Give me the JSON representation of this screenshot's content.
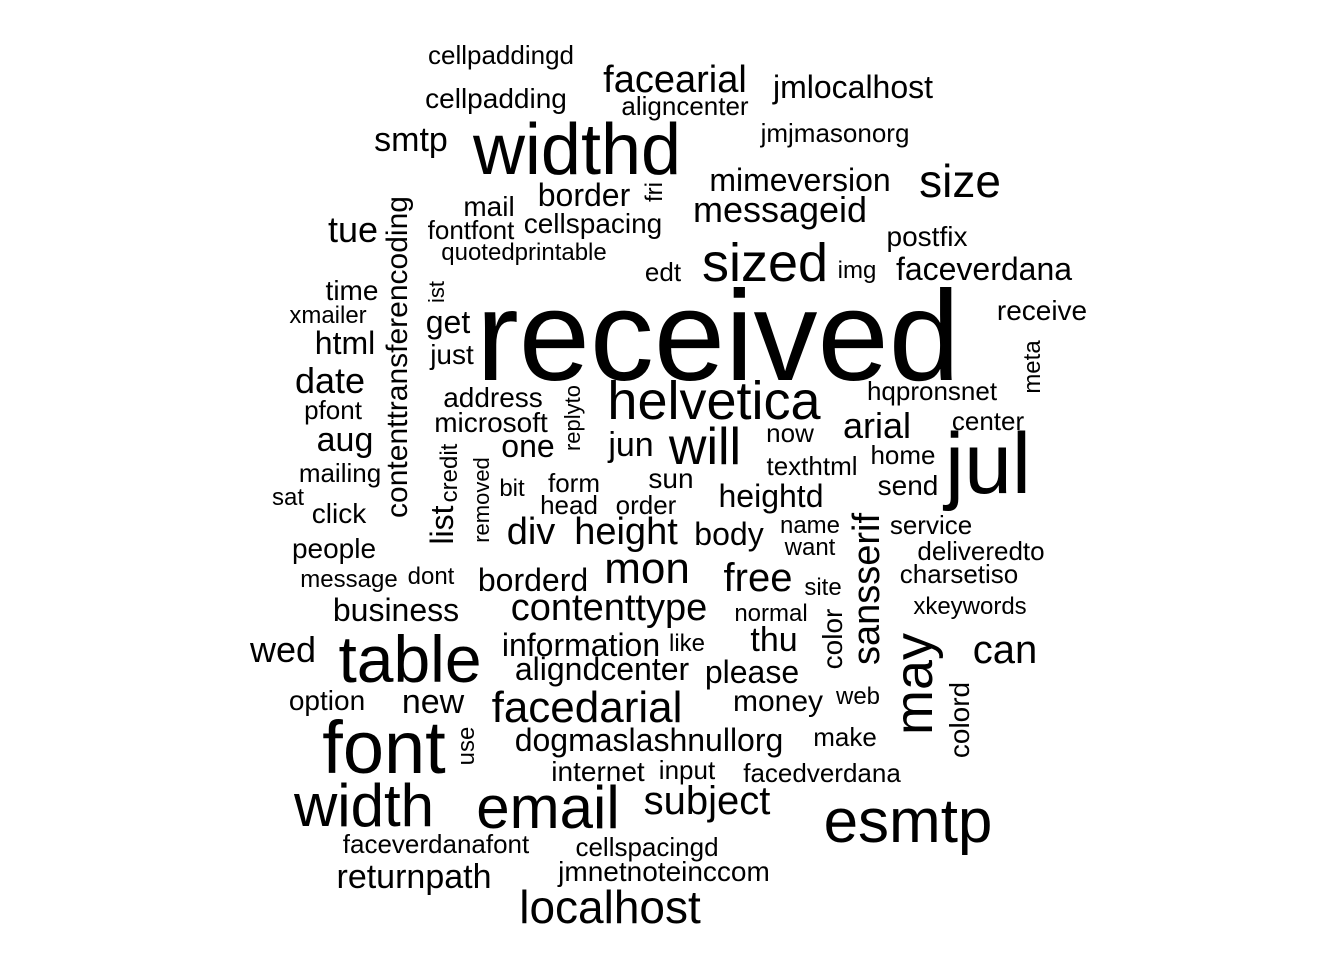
{
  "word_cloud": {
    "text_color": "#000000",
    "background_color": "#ffffff",
    "words": [
      {
        "text": "received",
        "rotated": false
      },
      {
        "text": "jul",
        "rotated": false
      },
      {
        "text": "widthd",
        "rotated": false
      },
      {
        "text": "font",
        "rotated": false
      },
      {
        "text": "table",
        "rotated": false
      },
      {
        "text": "esmtp",
        "rotated": false
      },
      {
        "text": "email",
        "rotated": false
      },
      {
        "text": "width",
        "rotated": false
      },
      {
        "text": "helvetica",
        "rotated": false
      },
      {
        "text": "sized",
        "rotated": false
      },
      {
        "text": "may",
        "rotated": true
      },
      {
        "text": "will",
        "rotated": false
      },
      {
        "text": "size",
        "rotated": false
      },
      {
        "text": "sansserif",
        "rotated": true
      },
      {
        "text": "localhost",
        "rotated": false
      },
      {
        "text": "mon",
        "rotated": false
      },
      {
        "text": "facedarial",
        "rotated": false
      },
      {
        "text": "subject",
        "rotated": false
      },
      {
        "text": "facearial",
        "rotated": false
      },
      {
        "text": "contenttransferencoding",
        "rotated": true
      },
      {
        "text": "height",
        "rotated": false
      },
      {
        "text": "free",
        "rotated": false
      },
      {
        "text": "contenttype",
        "rotated": false
      },
      {
        "text": "can",
        "rotated": false
      },
      {
        "text": "div",
        "rotated": false
      },
      {
        "text": "messageid",
        "rotated": false
      },
      {
        "text": "wed",
        "rotated": false
      },
      {
        "text": "tue",
        "rotated": false
      },
      {
        "text": "date",
        "rotated": false
      },
      {
        "text": "jun",
        "rotated": false
      },
      {
        "text": "returnpath",
        "rotated": false
      },
      {
        "text": "jmlocalhost",
        "rotated": false
      },
      {
        "text": "mimeversion",
        "rotated": false
      },
      {
        "text": "faceverdana",
        "rotated": false
      },
      {
        "text": "dogmaslashnullorg",
        "rotated": false
      },
      {
        "text": "heightd",
        "rotated": false
      },
      {
        "text": "body",
        "rotated": false
      },
      {
        "text": "arial",
        "rotated": false
      },
      {
        "text": "html",
        "rotated": false
      },
      {
        "text": "smtp",
        "rotated": false
      },
      {
        "text": "border",
        "rotated": false
      },
      {
        "text": "thu",
        "rotated": false
      },
      {
        "text": "business",
        "rotated": false
      },
      {
        "text": "borderd",
        "rotated": false
      },
      {
        "text": "information",
        "rotated": false
      },
      {
        "text": "aligndcenter",
        "rotated": false
      },
      {
        "text": "please",
        "rotated": false
      },
      {
        "text": "aug",
        "rotated": false
      },
      {
        "text": "one",
        "rotated": false
      },
      {
        "text": "new",
        "rotated": false
      },
      {
        "text": "color",
        "rotated": true
      },
      {
        "text": "money",
        "rotated": false
      },
      {
        "text": "get",
        "rotated": false
      },
      {
        "text": "list",
        "rotated": true
      },
      {
        "text": "microsoft",
        "rotated": false
      },
      {
        "text": "jmnetnoteinccom",
        "rotated": false
      },
      {
        "text": "colord",
        "rotated": true
      },
      {
        "text": "internet",
        "rotated": false
      },
      {
        "text": "cellspacing",
        "rotated": false
      },
      {
        "text": "cellpadding",
        "rotated": false
      },
      {
        "text": "postfix",
        "rotated": false
      },
      {
        "text": "receive",
        "rotated": false
      },
      {
        "text": "hqpronsnet",
        "rotated": false
      },
      {
        "text": "option",
        "rotated": false
      },
      {
        "text": "address",
        "rotated": false
      },
      {
        "text": "sun",
        "rotated": false
      },
      {
        "text": "time",
        "rotated": false
      },
      {
        "text": "mail",
        "rotated": false
      },
      {
        "text": "faceverdanafont",
        "rotated": false
      },
      {
        "text": "cellspacingd",
        "rotated": false
      },
      {
        "text": "people",
        "rotated": false
      },
      {
        "text": "click",
        "rotated": false
      },
      {
        "text": "just",
        "rotated": false
      },
      {
        "text": "jmjmasonorg",
        "rotated": false
      },
      {
        "text": "texthtml",
        "rotated": false
      },
      {
        "text": "now",
        "rotated": false
      },
      {
        "text": "facedverdana",
        "rotated": false
      },
      {
        "text": "cellpaddingd",
        "rotated": false
      },
      {
        "text": "aligncenter",
        "rotated": false
      },
      {
        "text": "fontfont",
        "rotated": false
      },
      {
        "text": "replyto",
        "rotated": true
      },
      {
        "text": "pfont",
        "rotated": false
      },
      {
        "text": "mailing",
        "rotated": false
      },
      {
        "text": "send",
        "rotated": false
      },
      {
        "text": "service",
        "rotated": false
      },
      {
        "text": "deliveredto",
        "rotated": false
      },
      {
        "text": "charsetiso",
        "rotated": false
      },
      {
        "text": "center",
        "rotated": false
      },
      {
        "text": "head",
        "rotated": false
      },
      {
        "text": "order",
        "rotated": false
      },
      {
        "text": "form",
        "rotated": false
      },
      {
        "text": "name",
        "rotated": false
      },
      {
        "text": "want",
        "rotated": false
      },
      {
        "text": "home",
        "rotated": false
      },
      {
        "text": "make",
        "rotated": false
      },
      {
        "text": "input",
        "rotated": false
      },
      {
        "text": "quotedprintable",
        "rotated": false
      },
      {
        "text": "edt",
        "rotated": false
      },
      {
        "text": "img",
        "rotated": false
      },
      {
        "text": "xmailer",
        "rotated": false
      },
      {
        "text": "fri",
        "rotated": true
      },
      {
        "text": "ist",
        "rotated": true
      },
      {
        "text": "meta",
        "rotated": true
      },
      {
        "text": "credit",
        "rotated": true
      },
      {
        "text": "removed",
        "rotated": true
      },
      {
        "text": "bit",
        "rotated": false
      },
      {
        "text": "message",
        "rotated": false
      },
      {
        "text": "dont",
        "rotated": false
      },
      {
        "text": "sat",
        "rotated": false
      },
      {
        "text": "site",
        "rotated": false
      },
      {
        "text": "normal",
        "rotated": false
      },
      {
        "text": "like",
        "rotated": false
      },
      {
        "text": "xkeywords",
        "rotated": false
      },
      {
        "text": "web",
        "rotated": false
      },
      {
        "text": "use",
        "rotated": true
      }
    ]
  }
}
